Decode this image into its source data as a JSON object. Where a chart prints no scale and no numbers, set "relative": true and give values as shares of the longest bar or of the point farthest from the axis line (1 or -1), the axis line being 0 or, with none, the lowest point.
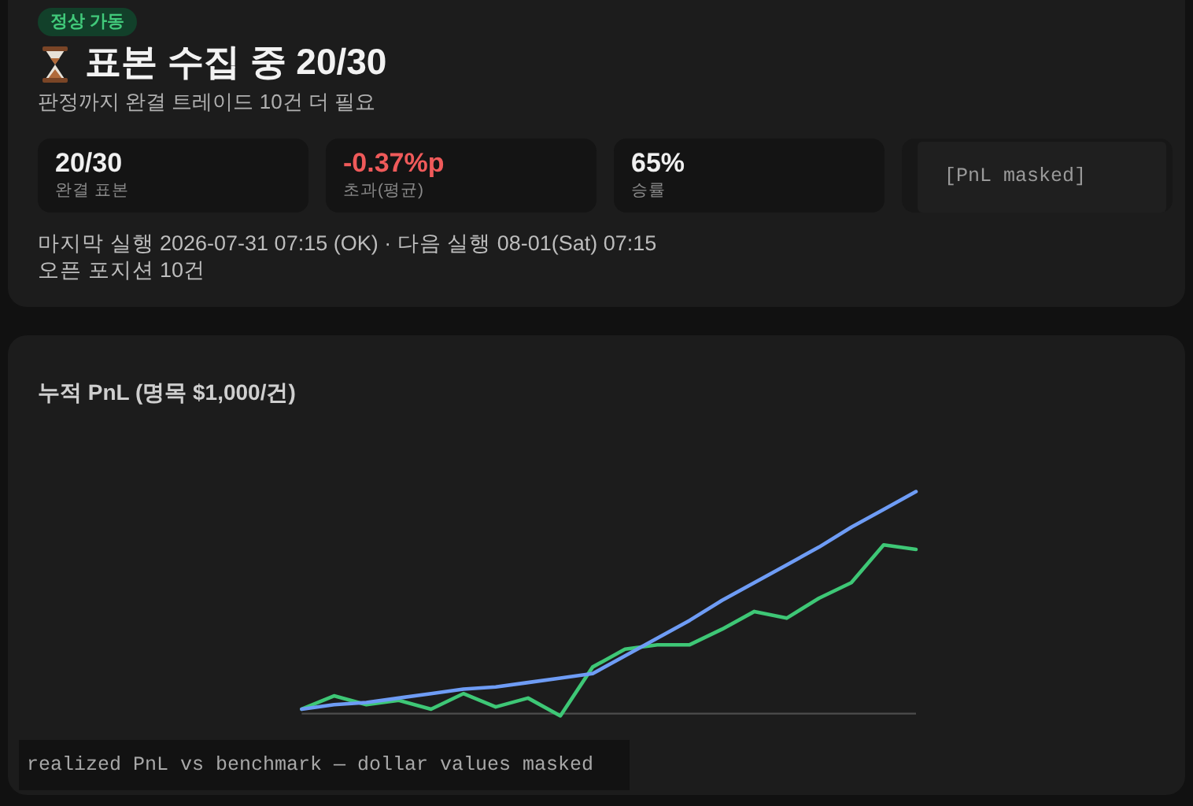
{
  "chart_data": [
    {
      "type": "other",
      "title": "표본 수집 중 20/30",
      "subtitle": "판정까지 완결 트레이드 10건 더 필요",
      "annotations": [
        "정상 가동",
        "20/30",
        "완결 표본",
        "-0.37%p",
        "초과(평균)",
        "65%",
        "승률",
        "[PnL masked]",
        "마지막 실행 2026-07-31 07:15 (OK) · 다음 실행 08-01(Sat) 07:15",
        "오픈 포지션 10건"
      ]
    },
    {
      "type": "line",
      "title": "누적 PnL (명목 $1,000/건)",
      "relative": true,
      "categories": [
        null,
        null,
        null,
        null,
        null,
        null,
        null,
        null,
        null,
        null,
        null,
        null,
        null,
        null,
        null,
        null,
        null,
        null,
        null,
        null
      ],
      "series": [
        {
          "color": "#3ec776",
          "values": [
            0.02,
            0.08,
            0.04,
            0.06,
            0.02,
            0.09,
            0.03,
            0.07,
            -0.01,
            0.21,
            0.29,
            0.31,
            0.31,
            0.38,
            0.46,
            0.43,
            0.52,
            0.59,
            0.76,
            0.74
          ]
        },
        {
          "color": "#6e9cf5",
          "values": [
            0.02,
            0.04,
            0.05,
            0.07,
            0.09,
            0.11,
            0.12,
            0.14,
            0.16,
            0.18,
            0.26,
            0.34,
            0.42,
            0.51,
            0.59,
            0.67,
            0.75,
            0.84,
            0.92,
            1
          ]
        }
      ],
      "annotations": [
        "realized PnL vs benchmark — dollar values masked"
      ]
    }
  ]
}
